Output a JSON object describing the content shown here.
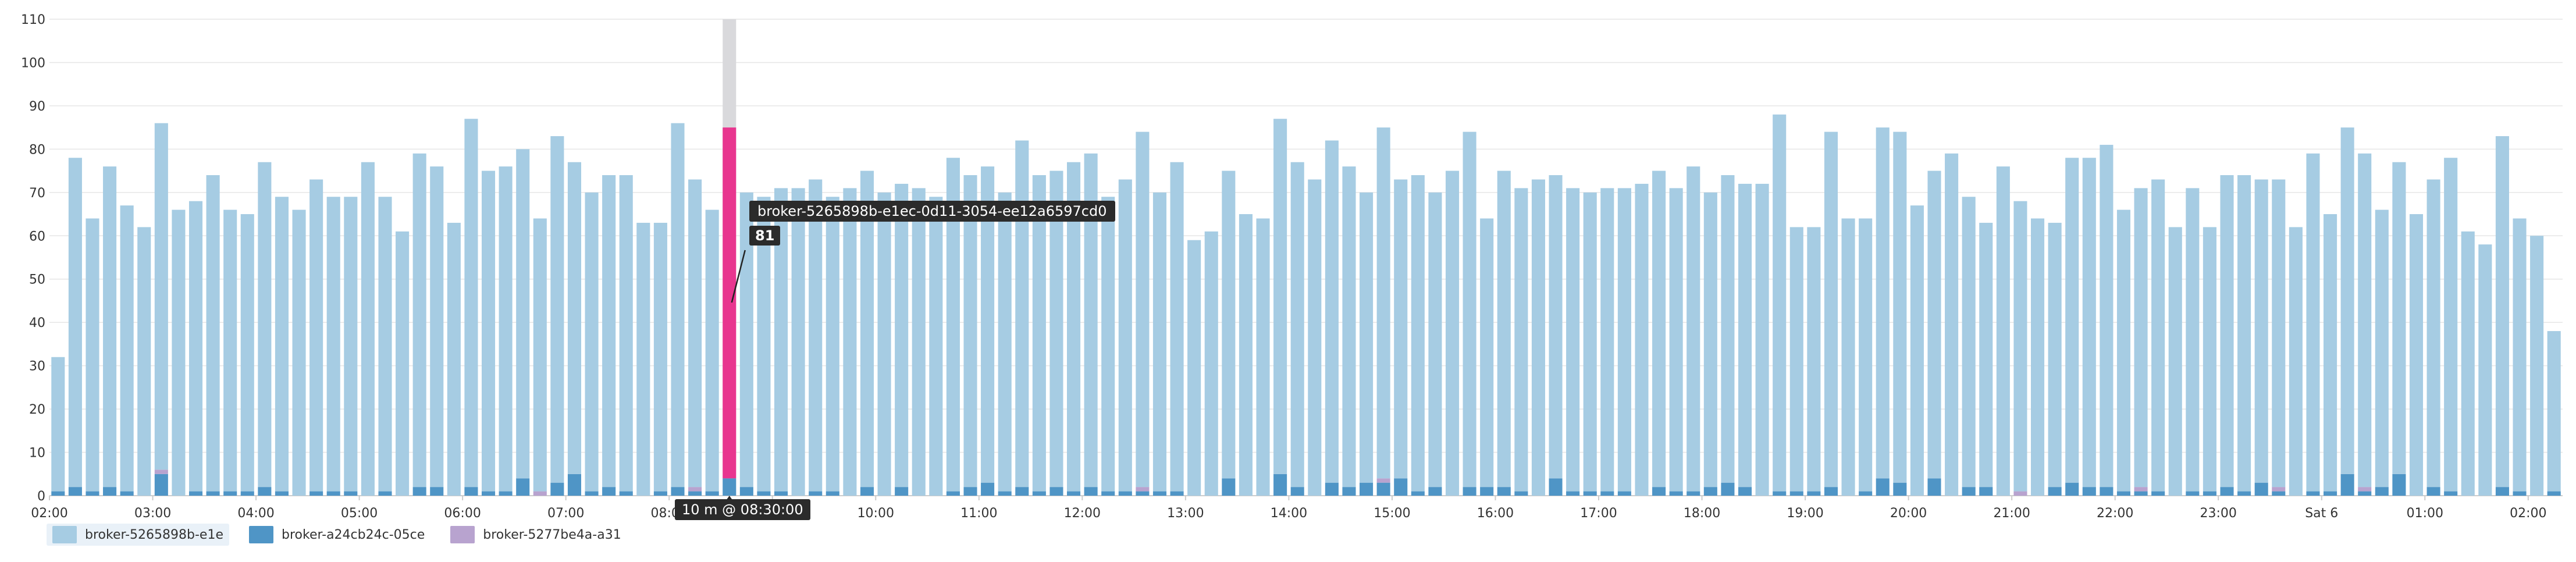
{
  "chart_data": {
    "type": "bar",
    "stacked": true,
    "ylim": [
      0,
      110
    ],
    "yticks": [
      0,
      10,
      20,
      30,
      40,
      50,
      60,
      70,
      80,
      90,
      100,
      110
    ],
    "grid": true,
    "legend_position": "bottom-left",
    "xtick_labels": [
      "02:00",
      "03:00",
      "04:00",
      "05:00",
      "06:00",
      "07:00",
      "08:00",
      "09:00",
      "10:00",
      "11:00",
      "12:00",
      "13:00",
      "14:00",
      "15:00",
      "16:00",
      "17:00",
      "18:00",
      "19:00",
      "20:00",
      "21:00",
      "22:00",
      "23:00",
      "Sat 6",
      "01:00",
      "02:00"
    ],
    "x_start": "02:00",
    "bar_interval_minutes": 10,
    "series": [
      {
        "name": "broker-5265898b-e1e",
        "color": "#a6cce3",
        "values": [
          31,
          76,
          63,
          74,
          66,
          62,
          80,
          66,
          67,
          73,
          65,
          64,
          75,
          68,
          66,
          72,
          68,
          68,
          77,
          68,
          61,
          77,
          74,
          63,
          85,
          74,
          75,
          76,
          63,
          80,
          72,
          69,
          72,
          73,
          63,
          62,
          84,
          71,
          65,
          81,
          68,
          68,
          70,
          71,
          72,
          68,
          71,
          73,
          70,
          70,
          71,
          69,
          77,
          72,
          73,
          69,
          80,
          73,
          73,
          76,
          77,
          68,
          72,
          82,
          69,
          76,
          59,
          61,
          71,
          65,
          64,
          82,
          75,
          73,
          79,
          74,
          67,
          81,
          69,
          73,
          68,
          75,
          82,
          62,
          73,
          70,
          73,
          70,
          70,
          69,
          70,
          70,
          72,
          73,
          70,
          75,
          68,
          71,
          70,
          72,
          87,
          61,
          61,
          82,
          64,
          63,
          81,
          81,
          67,
          71,
          79,
          67,
          61,
          76,
          67,
          64,
          61,
          75,
          76,
          79,
          65,
          69,
          72,
          62,
          70,
          61,
          72,
          73,
          70,
          71,
          62,
          78,
          64,
          80,
          77,
          64,
          72,
          65,
          71,
          77,
          61,
          58,
          81,
          63,
          60,
          37
        ]
      },
      {
        "name": "broker-a24cb24c-05ce",
        "color": "#4f95c6",
        "values": [
          1,
          2,
          1,
          2,
          1,
          0,
          5,
          0,
          1,
          1,
          1,
          1,
          2,
          1,
          0,
          1,
          1,
          1,
          0,
          1,
          0,
          2,
          2,
          0,
          2,
          1,
          1,
          4,
          0,
          3,
          5,
          1,
          2,
          1,
          0,
          1,
          2,
          1,
          1,
          4,
          2,
          1,
          1,
          0,
          1,
          1,
          0,
          2,
          0,
          2,
          0,
          0,
          1,
          2,
          3,
          1,
          2,
          1,
          2,
          1,
          2,
          1,
          1,
          1,
          1,
          1,
          0,
          0,
          4,
          0,
          0,
          5,
          2,
          0,
          3,
          2,
          3,
          3,
          4,
          1,
          2,
          0,
          2,
          2,
          2,
          1,
          0,
          4,
          1,
          1,
          1,
          1,
          0,
          2,
          1,
          1,
          2,
          3,
          2,
          0,
          1,
          1,
          1,
          2,
          0,
          1,
          4,
          3,
          0,
          4,
          0,
          2,
          2,
          0,
          0,
          0,
          2,
          3,
          2,
          2,
          1,
          1,
          1,
          0,
          1,
          1,
          2,
          1,
          3,
          1,
          0,
          1,
          1,
          5,
          1,
          2,
          5,
          0,
          2,
          1,
          0,
          0,
          2,
          1,
          0,
          1
        ]
      },
      {
        "name": "broker-5277be4a-a31",
        "color": "#b8a3cf",
        "values": [
          0,
          0,
          0,
          0,
          0,
          0,
          1,
          0,
          0,
          0,
          0,
          0,
          0,
          0,
          0,
          0,
          0,
          0,
          0,
          0,
          0,
          0,
          0,
          0,
          0,
          0,
          0,
          0,
          1,
          0,
          0,
          0,
          0,
          0,
          0,
          0,
          0,
          1,
          0,
          0,
          0,
          0,
          0,
          0,
          0,
          0,
          0,
          0,
          0,
          0,
          0,
          0,
          0,
          0,
          0,
          0,
          0,
          0,
          0,
          0,
          0,
          0,
          0,
          1,
          0,
          0,
          0,
          0,
          0,
          0,
          0,
          0,
          0,
          0,
          0,
          0,
          0,
          1,
          0,
          0,
          0,
          0,
          0,
          0,
          0,
          0,
          0,
          0,
          0,
          0,
          0,
          0,
          0,
          0,
          0,
          0,
          0,
          0,
          0,
          0,
          0,
          0,
          0,
          0,
          0,
          0,
          0,
          0,
          0,
          0,
          0,
          0,
          0,
          0,
          1,
          0,
          0,
          0,
          0,
          0,
          0,
          1,
          0,
          0,
          0,
          0,
          0,
          0,
          0,
          1,
          0,
          0,
          0,
          0,
          1,
          0,
          0,
          0,
          0,
          0,
          0,
          0,
          0,
          0,
          0,
          0
        ]
      }
    ],
    "highlight": {
      "index": 39,
      "highlight_color": "#e8368f",
      "total": 110,
      "series_label": "broker-5265898b-e1ec-0d11-3054-ee12a6597cd0",
      "value_label": "81",
      "time_label": "10 m @ 08:30:00"
    }
  },
  "colors": {
    "grid": "#e6e6e6",
    "axis": "#cccccc",
    "hover_remainder": "#d9d9dc"
  }
}
